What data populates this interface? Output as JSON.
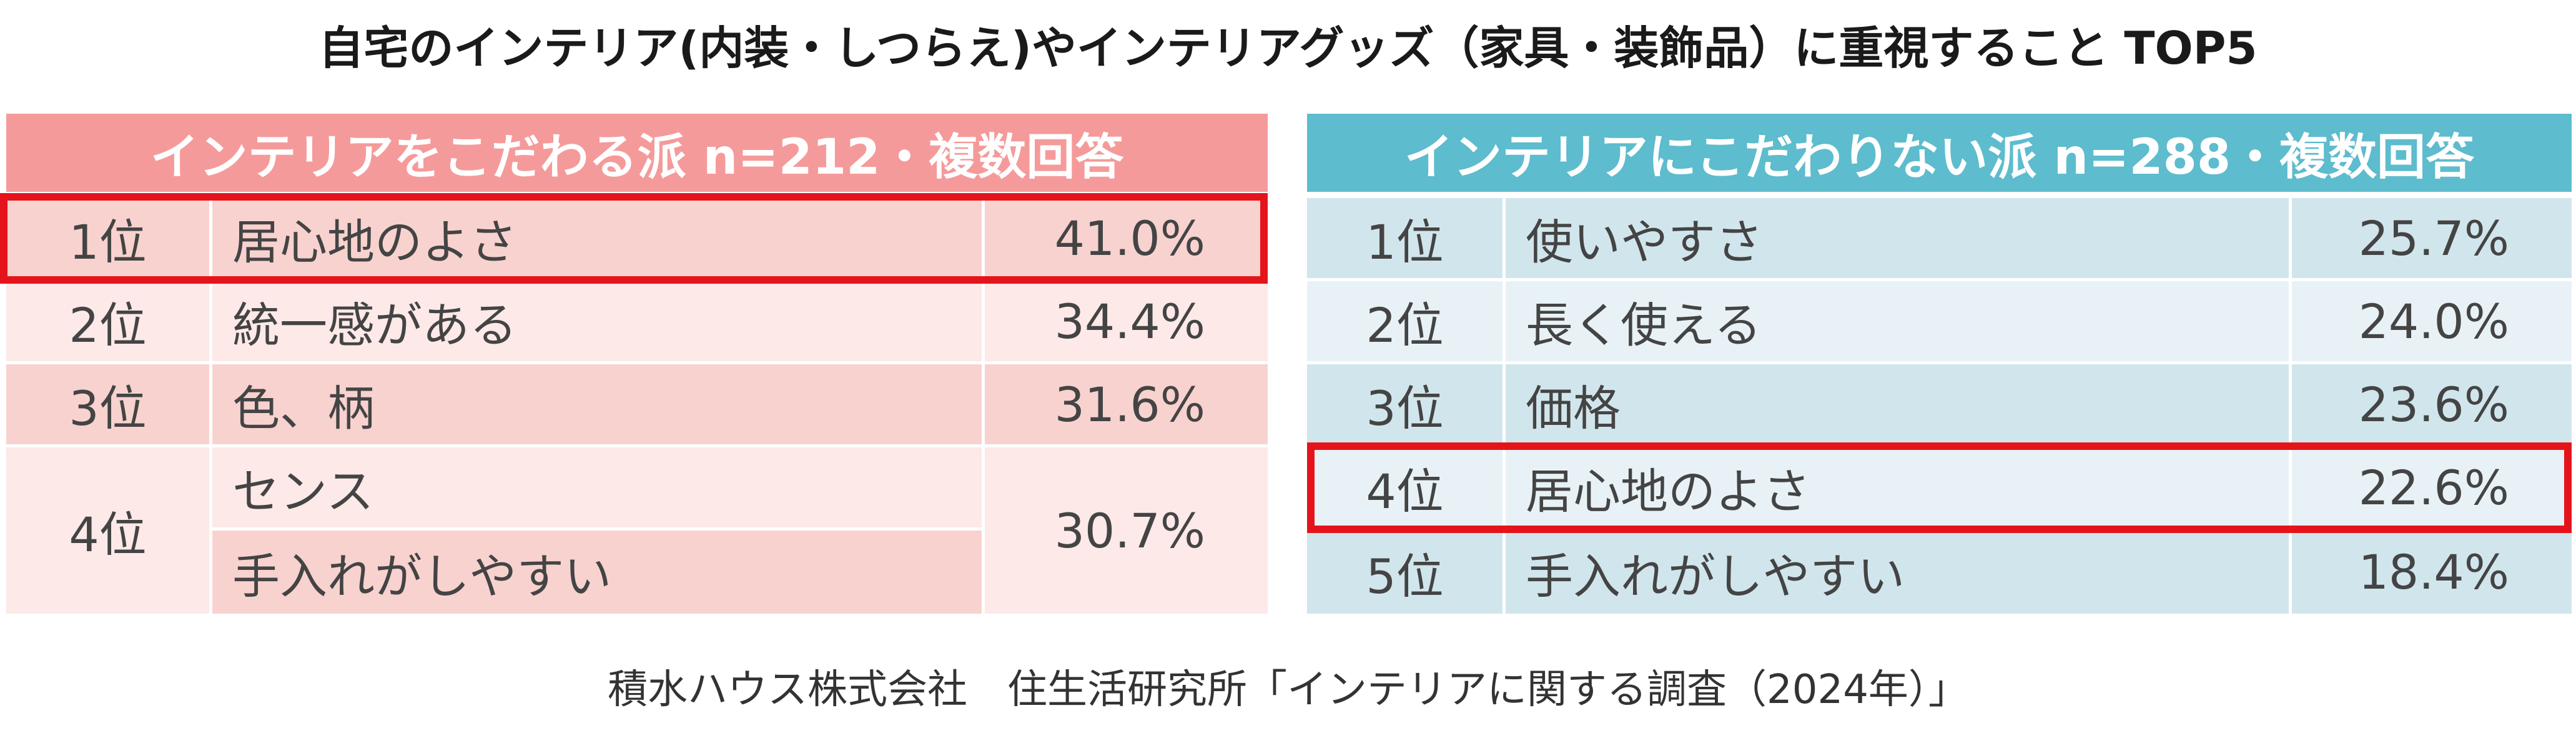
{
  "title": "自宅のインテリア(内装・しつらえ)やインテリアグッズ（家具・装飾品）に重視すること TOP5",
  "left": {
    "header": "インテリアをこだわる派 n=212・複数回答",
    "header_color": "#f59a9a",
    "row_dark": "#f8d2cf",
    "row_light": "#fce9e8",
    "rows": [
      {
        "rank": "1位",
        "item": "居心地のよさ",
        "value": "41.0%"
      },
      {
        "rank": "2位",
        "item": "統一感がある",
        "value": "34.4%"
      },
      {
        "rank": "3位",
        "item": "色、柄",
        "value": "31.6%"
      },
      {
        "rank": "4位",
        "item": "センス",
        "item2": "手入れがしやすい",
        "value": "30.7%"
      }
    ]
  },
  "right": {
    "header": "インテリアにこだわりない派 n=288・複数回答",
    "header_color": "#5dbccd",
    "row_dark": "#d1e5ec",
    "row_light": "#e8f2f6",
    "rows": [
      {
        "rank": "1位",
        "item": "使いやすさ",
        "value": "25.7%"
      },
      {
        "rank": "2位",
        "item": "長く使える",
        "value": "24.0%"
      },
      {
        "rank": "3位",
        "item": "価格",
        "value": "23.6%"
      },
      {
        "rank": "4位",
        "item": "居心地のよさ",
        "value": "22.6%"
      },
      {
        "rank": "5位",
        "item": "手入れがしやすい",
        "value": "18.4%"
      }
    ]
  },
  "highlight_color": "#e5141b",
  "source": "積水ハウス株式会社　住生活研究所「インテリアに関する調査（2024年）」"
}
